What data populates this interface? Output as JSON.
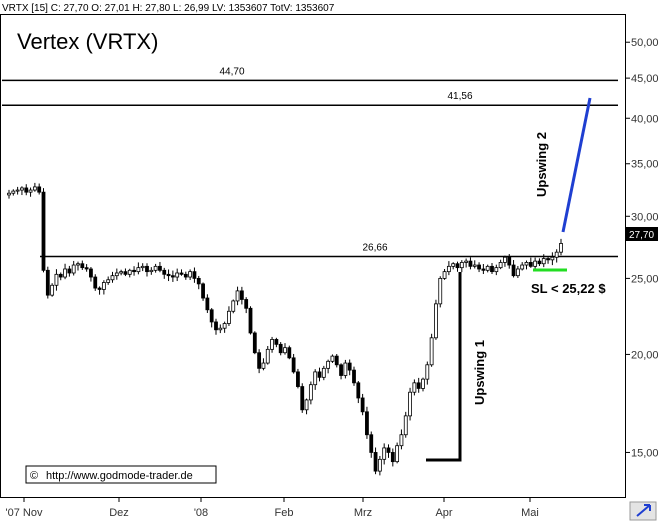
{
  "header": {
    "info": "VRTX [15] C: 27,70 O: 27,01 H: 27,80 L: 26,99 LV: 1353607 TotV: 1353607"
  },
  "chart_data": {
    "type": "candlestick",
    "title": "Vertex (VRTX)",
    "y_scale": "log",
    "ylim": [
      13.2,
      54
    ],
    "y_ticks": [
      {
        "value": 50,
        "label": "50,00"
      },
      {
        "value": 45,
        "label": "45,00"
      },
      {
        "value": 40,
        "label": "40,00"
      },
      {
        "value": 35,
        "label": "35,00"
      },
      {
        "value": 30,
        "label": "30,00"
      },
      {
        "value": 25,
        "label": "25,00"
      },
      {
        "value": 20,
        "label": "20,00"
      },
      {
        "value": 15,
        "label": "15,00"
      }
    ],
    "x_labels": [
      "'07 Nov",
      "Dez",
      "'08",
      "Feb",
      "Mrz",
      "Apr",
      "Mai"
    ],
    "last_price": {
      "value": 27.7,
      "label": "27,70"
    },
    "levels": [
      {
        "value": 44.7,
        "label": "44,70"
      },
      {
        "value": 41.56,
        "label": "41,56"
      },
      {
        "value": 26.66,
        "label": "26,66"
      }
    ],
    "stop_loss": {
      "value": 25.22,
      "label": "SL < 25,22 $"
    },
    "annotations": {
      "upswing1": "Upswing 1",
      "upswing2": "Upswing 2"
    },
    "closes": [
      32.1,
      32.3,
      32.4,
      32.6,
      32.2,
      32.4,
      32.7,
      32.2,
      25.6,
      23.8,
      24.5,
      25.3,
      25.1,
      25.7,
      25.4,
      26.0,
      26.1,
      25.8,
      25.7,
      25.1,
      24.3,
      24.2,
      24.7,
      24.9,
      25.2,
      25.4,
      25.5,
      25.3,
      25.6,
      25.5,
      25.8,
      25.9,
      25.5,
      25.6,
      25.9,
      25.6,
      25.3,
      25.2,
      25.1,
      25.4,
      25.3,
      25.1,
      25.5,
      25.0,
      24.6,
      23.6,
      22.8,
      22.0,
      21.5,
      21.6,
      21.9,
      22.7,
      23.4,
      24.1,
      23.5,
      22.9,
      21.3,
      20.1,
      19.2,
      19.5,
      20.3,
      20.9,
      20.6,
      20.1,
      20.4,
      19.8,
      19.0,
      18.2,
      17.0,
      17.5,
      18.3,
      19.0,
      18.7,
      19.2,
      19.6,
      19.9,
      19.4,
      18.8,
      19.5,
      19.1,
      18.4,
      17.6,
      16.9,
      15.8,
      15.0,
      14.2,
      14.7,
      15.2,
      15.0,
      14.6,
      15.3,
      15.8,
      16.7,
      17.9,
      18.4,
      18.1,
      18.6,
      19.4,
      21.0,
      23.2,
      25.0,
      25.5,
      25.9,
      26.1,
      25.8,
      26.2,
      26.3,
      25.9,
      26.0,
      25.7,
      25.6,
      25.9,
      25.5,
      25.8,
      26.2,
      26.6,
      26.0,
      25.2,
      25.7,
      26.0,
      26.2,
      25.9,
      26.3,
      26.1,
      26.5,
      26.4,
      26.6,
      27.0,
      27.7
    ]
  },
  "watermark": {
    "text": "http://www.godmode-trader.de",
    "symbol": "©"
  }
}
